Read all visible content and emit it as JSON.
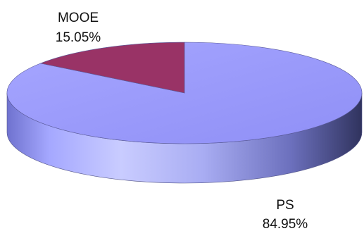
{
  "chart_data": {
    "type": "pie",
    "style": "3d",
    "title": "",
    "slices": [
      {
        "label": "PS",
        "value": 84.95,
        "value_label": "84.95%",
        "color": "#9999ff"
      },
      {
        "label": "MOOE",
        "value": 15.05,
        "value_label": "15.05%",
        "color": "#993366"
      }
    ]
  }
}
